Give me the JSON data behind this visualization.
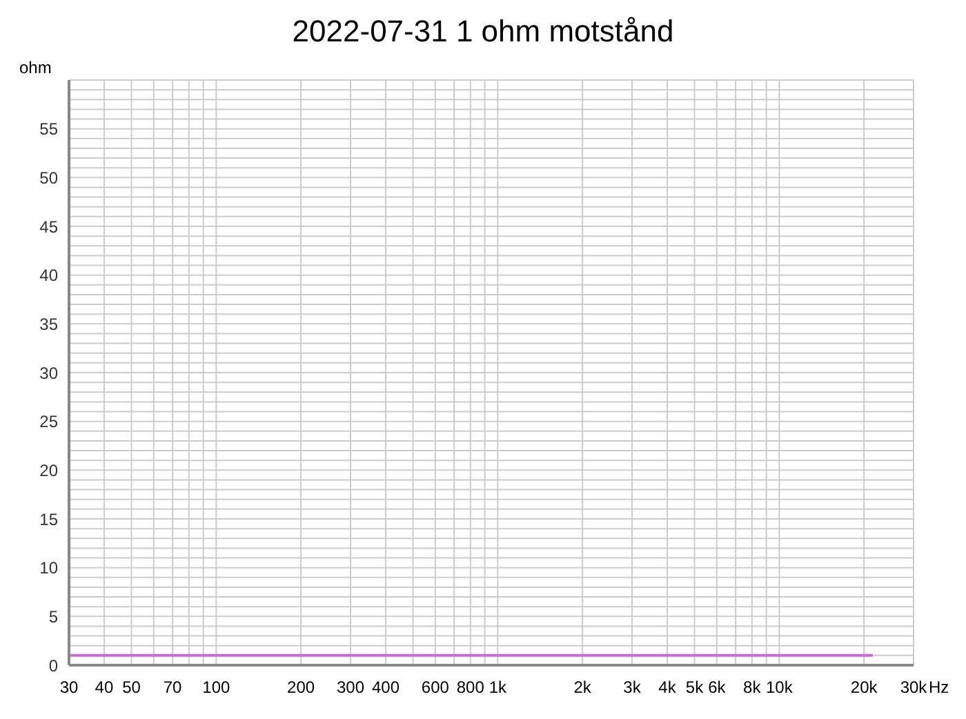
{
  "chart_data": {
    "type": "line",
    "title": "2022-07-31 1 ohm motstånd",
    "ylabel": "ohm",
    "xlabel": "Hz",
    "log": "x",
    "grid": true,
    "legend": false,
    "marker": "none",
    "line_style": "solid",
    "xlim": [
      30,
      30000
    ],
    "xticks": [
      30,
      40,
      50,
      {
        "value": 60,
        "label": null
      },
      70,
      {
        "value": 80,
        "label": null
      },
      {
        "value": 90,
        "label": null
      },
      100,
      200,
      300,
      400,
      {
        "value": 500,
        "label": null
      },
      600,
      {
        "value": 700,
        "label": null
      },
      800,
      {
        "value": 900,
        "label": null
      },
      {
        "value": 1000,
        "label": "1k"
      },
      {
        "value": 2000,
        "label": "2k"
      },
      {
        "value": 3000,
        "label": "3k"
      },
      {
        "value": 4000,
        "label": "4k"
      },
      {
        "value": 5000,
        "label": "5k"
      },
      {
        "value": 6000,
        "label": "6k"
      },
      {
        "value": 7000,
        "label": null
      },
      {
        "value": 8000,
        "label": "8k"
      },
      {
        "value": 9000,
        "label": null
      },
      {
        "value": 10000,
        "label": "10k"
      },
      {
        "value": 20000,
        "label": "20k"
      },
      {
        "value": 30000,
        "label": "30k"
      }
    ],
    "ylim": [
      0,
      60
    ],
    "yticks": [
      0,
      {
        "value": 1,
        "label": null
      },
      {
        "value": 2,
        "label": null
      },
      {
        "value": 3,
        "label": null
      },
      {
        "value": 4,
        "label": null
      },
      5,
      {
        "value": 6,
        "label": null
      },
      {
        "value": 7,
        "label": null
      },
      {
        "value": 8,
        "label": null
      },
      {
        "value": 9,
        "label": null
      },
      10,
      {
        "value": 11,
        "label": null
      },
      {
        "value": 12,
        "label": null
      },
      {
        "value": 13,
        "label": null
      },
      {
        "value": 14,
        "label": null
      },
      15,
      {
        "value": 16,
        "label": null
      },
      {
        "value": 17,
        "label": null
      },
      {
        "value": 18,
        "label": null
      },
      {
        "value": 19,
        "label": null
      },
      20,
      {
        "value": 21,
        "label": null
      },
      {
        "value": 22,
        "label": null
      },
      {
        "value": 23,
        "label": null
      },
      {
        "value": 24,
        "label": null
      },
      25,
      {
        "value": 26,
        "label": null
      },
      {
        "value": 27,
        "label": null
      },
      {
        "value": 28,
        "label": null
      },
      {
        "value": 29,
        "label": null
      },
      30,
      {
        "value": 31,
        "label": null
      },
      {
        "value": 32,
        "label": null
      },
      {
        "value": 33,
        "label": null
      },
      {
        "value": 34,
        "label": null
      },
      35,
      {
        "value": 36,
        "label": null
      },
      {
        "value": 37,
        "label": null
      },
      {
        "value": 38,
        "label": null
      },
      {
        "value": 39,
        "label": null
      },
      40,
      {
        "value": 41,
        "label": null
      },
      {
        "value": 42,
        "label": null
      },
      {
        "value": 43,
        "label": null
      },
      {
        "value": 44,
        "label": null
      },
      45,
      {
        "value": 46,
        "label": null
      },
      {
        "value": 47,
        "label": null
      },
      {
        "value": 48,
        "label": null
      },
      {
        "value": 49,
        "label": null
      },
      50,
      {
        "value": 51,
        "label": null
      },
      {
        "value": 52,
        "label": null
      },
      {
        "value": 53,
        "label": null
      },
      {
        "value": 54,
        "label": null
      },
      55,
      {
        "value": 56,
        "label": null
      },
      {
        "value": 57,
        "label": null
      },
      {
        "value": 58,
        "label": null
      },
      {
        "value": 59,
        "label": null
      },
      {
        "value": 60,
        "label": null
      }
    ],
    "series": [
      {
        "color": "#c86ad8",
        "x": [
          30,
          21500
        ],
        "values": [
          1,
          1
        ]
      }
    ]
  }
}
